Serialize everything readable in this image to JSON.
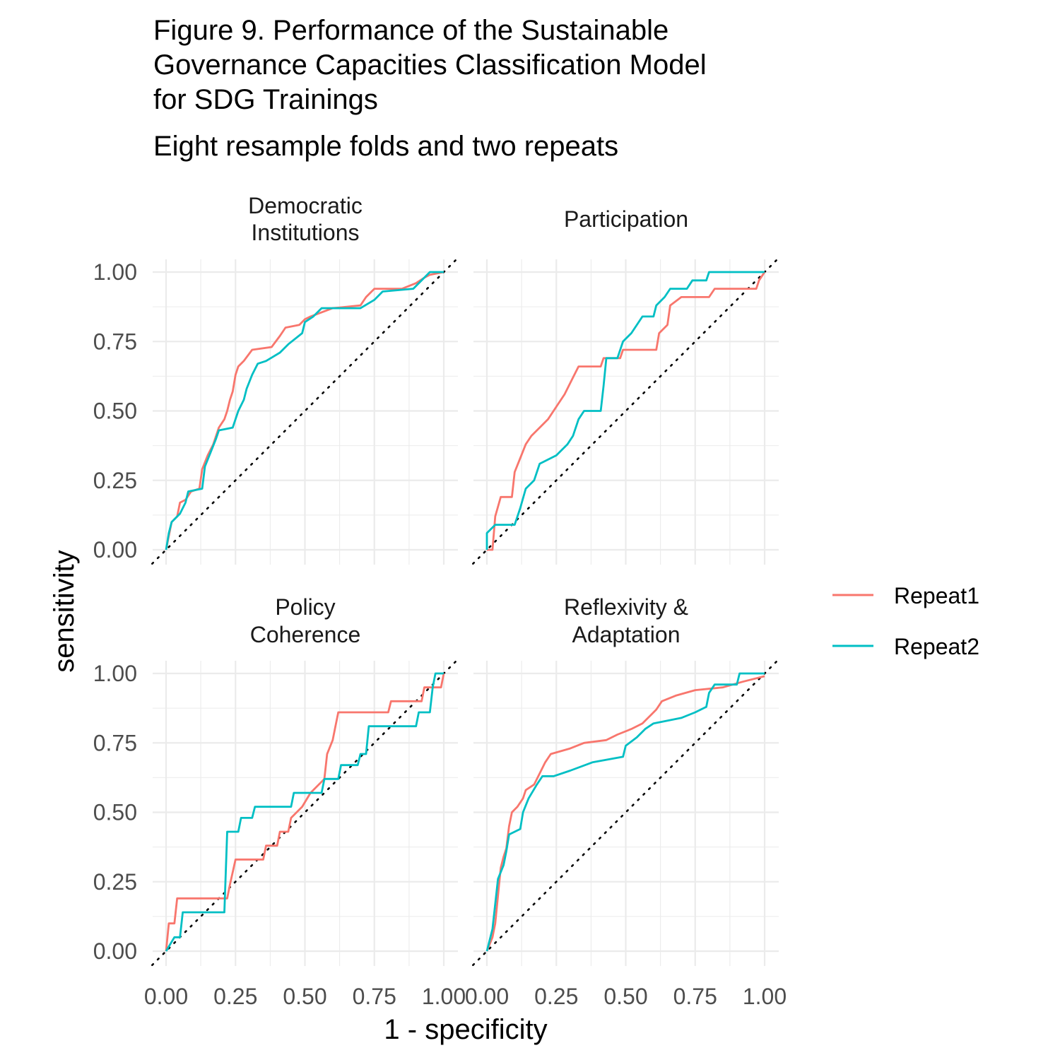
{
  "chart_data": {
    "type": "line",
    "title_lines": [
      "Figure 9. Performance of the Sustainable",
      "Governance Capacities Classification Model",
      "for SDG Trainings"
    ],
    "subtitle": "Eight resample folds and two repeats",
    "xlabel": "1 - specificity",
    "ylabel": "sensitivity",
    "xlim": [
      0,
      1
    ],
    "ylim": [
      0,
      1
    ],
    "x_ticks": [
      "0.00",
      "0.25",
      "0.50",
      "0.75",
      "1.00"
    ],
    "y_ticks": [
      "0.00",
      "0.25",
      "0.50",
      "0.75",
      "1.00"
    ],
    "grid": true,
    "reference_line": "diagonal dotted y = x",
    "legend": {
      "position": "right",
      "items": [
        {
          "name": "Repeat1",
          "color": "#F8766D"
        },
        {
          "name": "Repeat2",
          "color": "#00BFC4"
        }
      ]
    },
    "panels": [
      {
        "strip": [
          "Democratic",
          "Institutions"
        ],
        "series": [
          {
            "name": "Repeat1",
            "points": [
              [
                0,
                0
              ],
              [
                0.01,
                0.05
              ],
              [
                0.02,
                0.1
              ],
              [
                0.04,
                0.12
              ],
              [
                0.05,
                0.17
              ],
              [
                0.07,
                0.18
              ],
              [
                0.09,
                0.21
              ],
              [
                0.12,
                0.22
              ],
              [
                0.13,
                0.29
              ],
              [
                0.15,
                0.34
              ],
              [
                0.17,
                0.38
              ],
              [
                0.19,
                0.44
              ],
              [
                0.21,
                0.47
              ],
              [
                0.22,
                0.5
              ],
              [
                0.23,
                0.54
              ],
              [
                0.24,
                0.57
              ],
              [
                0.25,
                0.63
              ],
              [
                0.26,
                0.66
              ],
              [
                0.28,
                0.68
              ],
              [
                0.31,
                0.72
              ],
              [
                0.38,
                0.73
              ],
              [
                0.41,
                0.77
              ],
              [
                0.43,
                0.8
              ],
              [
                0.48,
                0.81
              ],
              [
                0.5,
                0.83
              ],
              [
                0.52,
                0.84
              ],
              [
                0.6,
                0.87
              ],
              [
                0.7,
                0.88
              ],
              [
                0.72,
                0.91
              ],
              [
                0.75,
                0.94
              ],
              [
                0.85,
                0.94
              ],
              [
                0.9,
                0.96
              ],
              [
                0.93,
                0.98
              ],
              [
                0.95,
                0.99
              ],
              [
                1.0,
                1.0
              ]
            ]
          },
          {
            "name": "Repeat2",
            "points": [
              [
                0,
                0
              ],
              [
                0.01,
                0.06
              ],
              [
                0.02,
                0.1
              ],
              [
                0.05,
                0.13
              ],
              [
                0.07,
                0.17
              ],
              [
                0.08,
                0.21
              ],
              [
                0.13,
                0.22
              ],
              [
                0.14,
                0.3
              ],
              [
                0.16,
                0.35
              ],
              [
                0.18,
                0.4
              ],
              [
                0.19,
                0.43
              ],
              [
                0.24,
                0.44
              ],
              [
                0.26,
                0.5
              ],
              [
                0.28,
                0.54
              ],
              [
                0.29,
                0.58
              ],
              [
                0.31,
                0.63
              ],
              [
                0.33,
                0.67
              ],
              [
                0.36,
                0.68
              ],
              [
                0.41,
                0.71
              ],
              [
                0.44,
                0.74
              ],
              [
                0.49,
                0.78
              ],
              [
                0.5,
                0.82
              ],
              [
                0.53,
                0.84
              ],
              [
                0.56,
                0.87
              ],
              [
                0.7,
                0.87
              ],
              [
                0.75,
                0.9
              ],
              [
                0.78,
                0.93
              ],
              [
                0.89,
                0.94
              ],
              [
                0.92,
                0.97
              ],
              [
                0.95,
                1.0
              ],
              [
                1.0,
                1.0
              ]
            ]
          }
        ]
      },
      {
        "strip": [
          "Participation"
        ],
        "series": [
          {
            "name": "Repeat1",
            "points": [
              [
                0.0,
                0.0
              ],
              [
                0.02,
                0.0
              ],
              [
                0.03,
                0.12
              ],
              [
                0.05,
                0.19
              ],
              [
                0.09,
                0.19
              ],
              [
                0.1,
                0.28
              ],
              [
                0.12,
                0.33
              ],
              [
                0.14,
                0.38
              ],
              [
                0.16,
                0.41
              ],
              [
                0.19,
                0.44
              ],
              [
                0.22,
                0.47
              ],
              [
                0.24,
                0.5
              ],
              [
                0.28,
                0.56
              ],
              [
                0.31,
                0.62
              ],
              [
                0.33,
                0.66
              ],
              [
                0.41,
                0.66
              ],
              [
                0.42,
                0.69
              ],
              [
                0.48,
                0.69
              ],
              [
                0.49,
                0.72
              ],
              [
                0.61,
                0.72
              ],
              [
                0.62,
                0.78
              ],
              [
                0.65,
                0.81
              ],
              [
                0.66,
                0.88
              ],
              [
                0.7,
                0.91
              ],
              [
                0.8,
                0.91
              ],
              [
                0.82,
                0.94
              ],
              [
                0.97,
                0.94
              ],
              [
                0.98,
                0.97
              ],
              [
                1.0,
                1.0
              ]
            ]
          },
          {
            "name": "Repeat2",
            "points": [
              [
                0.0,
                0.0
              ],
              [
                0.0,
                0.06
              ],
              [
                0.03,
                0.09
              ],
              [
                0.1,
                0.09
              ],
              [
                0.12,
                0.15
              ],
              [
                0.14,
                0.22
              ],
              [
                0.17,
                0.25
              ],
              [
                0.19,
                0.31
              ],
              [
                0.25,
                0.34
              ],
              [
                0.29,
                0.38
              ],
              [
                0.31,
                0.41
              ],
              [
                0.33,
                0.47
              ],
              [
                0.35,
                0.5
              ],
              [
                0.41,
                0.5
              ],
              [
                0.42,
                0.59
              ],
              [
                0.43,
                0.69
              ],
              [
                0.47,
                0.69
              ],
              [
                0.49,
                0.75
              ],
              [
                0.52,
                0.78
              ],
              [
                0.56,
                0.84
              ],
              [
                0.6,
                0.84
              ],
              [
                0.61,
                0.88
              ],
              [
                0.64,
                0.91
              ],
              [
                0.66,
                0.94
              ],
              [
                0.72,
                0.94
              ],
              [
                0.74,
                0.97
              ],
              [
                0.79,
                0.97
              ],
              [
                0.8,
                1.0
              ],
              [
                1.0,
                1.0
              ]
            ]
          }
        ]
      },
      {
        "strip": [
          "Policy",
          "Coherence"
        ],
        "series": [
          {
            "name": "Repeat1",
            "points": [
              [
                0,
                0
              ],
              [
                0.01,
                0.1
              ],
              [
                0.03,
                0.1
              ],
              [
                0.04,
                0.19
              ],
              [
                0.22,
                0.19
              ],
              [
                0.23,
                0.24
              ],
              [
                0.25,
                0.33
              ],
              [
                0.35,
                0.33
              ],
              [
                0.36,
                0.38
              ],
              [
                0.4,
                0.38
              ],
              [
                0.41,
                0.43
              ],
              [
                0.44,
                0.43
              ],
              [
                0.45,
                0.48
              ],
              [
                0.49,
                0.52
              ],
              [
                0.52,
                0.57
              ],
              [
                0.57,
                0.62
              ],
              [
                0.58,
                0.71
              ],
              [
                0.6,
                0.76
              ],
              [
                0.61,
                0.81
              ],
              [
                0.62,
                0.86
              ],
              [
                0.8,
                0.86
              ],
              [
                0.81,
                0.9
              ],
              [
                0.92,
                0.9
              ],
              [
                0.93,
                0.95
              ],
              [
                0.99,
                0.95
              ],
              [
                1.0,
                1.0
              ]
            ]
          },
          {
            "name": "Repeat2",
            "points": [
              [
                0,
                0
              ],
              [
                0.03,
                0.05
              ],
              [
                0.05,
                0.05
              ],
              [
                0.06,
                0.14
              ],
              [
                0.21,
                0.14
              ],
              [
                0.22,
                0.43
              ],
              [
                0.26,
                0.43
              ],
              [
                0.27,
                0.48
              ],
              [
                0.31,
                0.48
              ],
              [
                0.32,
                0.52
              ],
              [
                0.45,
                0.52
              ],
              [
                0.46,
                0.57
              ],
              [
                0.56,
                0.57
              ],
              [
                0.57,
                0.62
              ],
              [
                0.62,
                0.62
              ],
              [
                0.63,
                0.67
              ],
              [
                0.69,
                0.67
              ],
              [
                0.7,
                0.71
              ],
              [
                0.72,
                0.71
              ],
              [
                0.73,
                0.81
              ],
              [
                0.9,
                0.81
              ],
              [
                0.91,
                0.86
              ],
              [
                0.95,
                0.86
              ],
              [
                0.96,
                0.95
              ],
              [
                0.97,
                1.0
              ],
              [
                1.0,
                1.0
              ]
            ]
          }
        ]
      },
      {
        "strip": [
          "Reflexivity &",
          "Adaptation"
        ],
        "series": [
          {
            "name": "Repeat1",
            "points": [
              [
                0,
                0
              ],
              [
                0.02,
                0.05
              ],
              [
                0.03,
                0.1
              ],
              [
                0.04,
                0.2
              ],
              [
                0.05,
                0.3
              ],
              [
                0.06,
                0.34
              ],
              [
                0.07,
                0.37
              ],
              [
                0.08,
                0.45
              ],
              [
                0.09,
                0.5
              ],
              [
                0.11,
                0.52
              ],
              [
                0.13,
                0.55
              ],
              [
                0.14,
                0.58
              ],
              [
                0.17,
                0.6
              ],
              [
                0.19,
                0.64
              ],
              [
                0.21,
                0.68
              ],
              [
                0.23,
                0.71
              ],
              [
                0.3,
                0.73
              ],
              [
                0.35,
                0.75
              ],
              [
                0.43,
                0.76
              ],
              [
                0.47,
                0.78
              ],
              [
                0.52,
                0.8
              ],
              [
                0.56,
                0.82
              ],
              [
                0.59,
                0.85
              ],
              [
                0.61,
                0.87
              ],
              [
                0.63,
                0.9
              ],
              [
                0.68,
                0.92
              ],
              [
                0.75,
                0.94
              ],
              [
                0.85,
                0.95
              ],
              [
                0.92,
                0.97
              ],
              [
                1.0,
                0.99
              ]
            ]
          },
          {
            "name": "Repeat2",
            "points": [
              [
                0,
                0
              ],
              [
                0.02,
                0.08
              ],
              [
                0.03,
                0.17
              ],
              [
                0.04,
                0.26
              ],
              [
                0.06,
                0.31
              ],
              [
                0.07,
                0.36
              ],
              [
                0.08,
                0.42
              ],
              [
                0.12,
                0.44
              ],
              [
                0.13,
                0.5
              ],
              [
                0.15,
                0.55
              ],
              [
                0.18,
                0.6
              ],
              [
                0.2,
                0.63
              ],
              [
                0.24,
                0.63
              ],
              [
                0.3,
                0.65
              ],
              [
                0.38,
                0.68
              ],
              [
                0.49,
                0.7
              ],
              [
                0.5,
                0.74
              ],
              [
                0.54,
                0.77
              ],
              [
                0.57,
                0.8
              ],
              [
                0.6,
                0.82
              ],
              [
                0.7,
                0.84
              ],
              [
                0.75,
                0.86
              ],
              [
                0.79,
                0.88
              ],
              [
                0.8,
                0.93
              ],
              [
                0.82,
                0.96
              ],
              [
                0.9,
                0.96
              ],
              [
                0.91,
                1.0
              ],
              [
                1.0,
                1.0
              ]
            ]
          }
        ]
      }
    ]
  }
}
